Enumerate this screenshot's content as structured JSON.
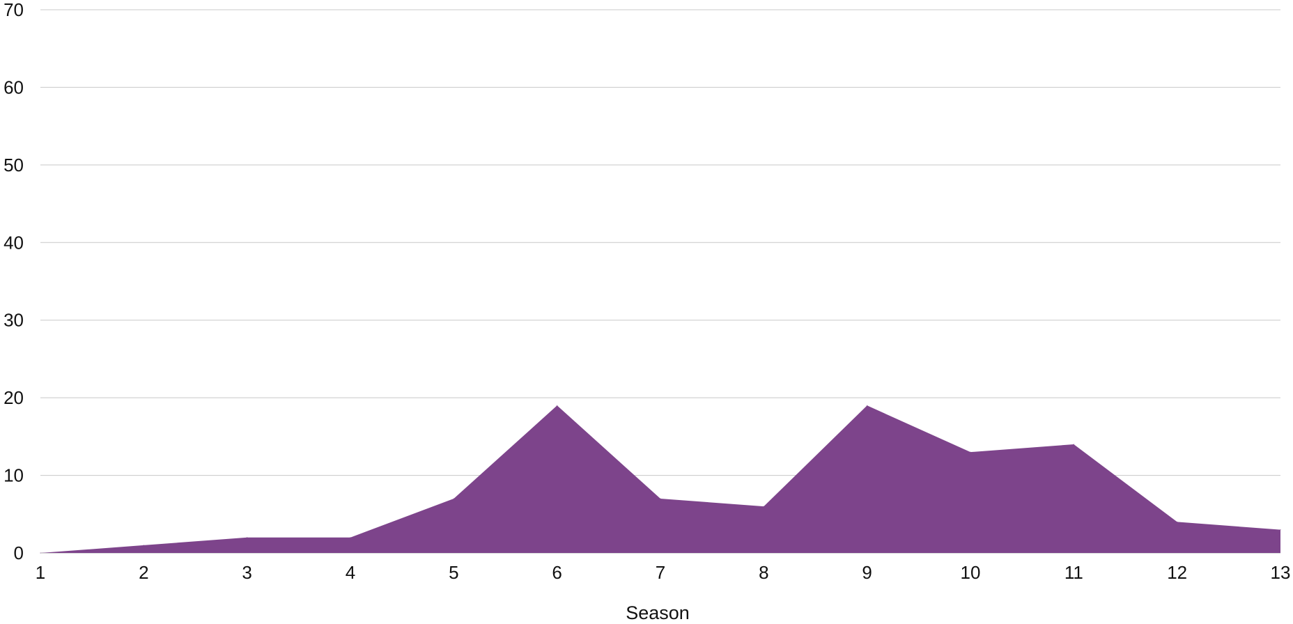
{
  "chart_data": {
    "type": "area",
    "x": [
      1,
      2,
      3,
      4,
      5,
      6,
      7,
      8,
      9,
      10,
      11,
      12,
      13
    ],
    "series": [
      {
        "values": [
          0,
          1,
          2,
          2,
          7,
          19,
          7,
          6,
          19,
          13,
          14,
          4,
          3
        ],
        "color": "#7D448B"
      }
    ],
    "title": "",
    "xlabel": "Season",
    "ylabel": "",
    "xlim": [
      1,
      13
    ],
    "ylim": [
      0,
      70
    ],
    "yticks": [
      0,
      10,
      20,
      30,
      40,
      50,
      60,
      70
    ],
    "xticks": [
      1,
      2,
      3,
      4,
      5,
      6,
      7,
      8,
      9,
      10,
      11,
      12,
      13
    ],
    "grid": true,
    "legend": "none",
    "gridColor": "#c8c8c8"
  }
}
